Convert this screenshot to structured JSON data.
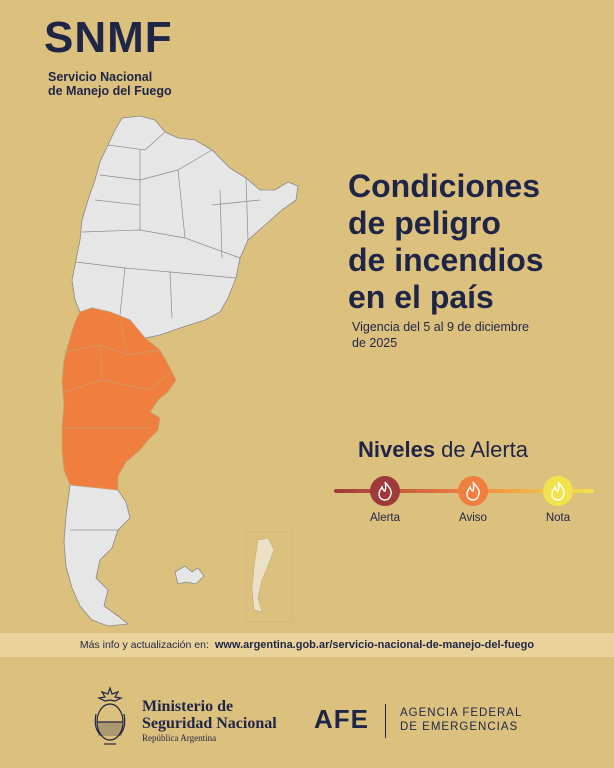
{
  "brand": {
    "acronym": "SNMF",
    "full_name_line1": "Servicio Nacional",
    "full_name_line2": "de Manejo del Fuego"
  },
  "headline": {
    "line1": "Condiciones",
    "line2": "de peligro",
    "line3": "de incendios",
    "line4": "en el país"
  },
  "validity": {
    "line1": "Vigencia del 5 al 9 de diciembre",
    "line2": "de 2025"
  },
  "legend": {
    "title_bold": "Niveles",
    "title_rest": " de Alerta",
    "levels": [
      {
        "label": "Alerta",
        "color": "#9e3a3a",
        "icon": "flame-icon"
      },
      {
        "label": "Aviso",
        "color": "#f07f3f",
        "icon": "flame-icon"
      },
      {
        "label": "Nota",
        "color": "#f2e34d",
        "icon": "flame-icon"
      }
    ]
  },
  "map": {
    "base_color": "#e6e6e6",
    "affected_color": "#f07f3f",
    "affected_level": "Aviso"
  },
  "info": {
    "prefix": "Más info y actualización en:",
    "url": "www.argentina.gob.ar/servicio-nacional-de-manejo-del-fuego"
  },
  "footer": {
    "ministry_line1": "Ministerio de",
    "ministry_line2": "Seguridad Nacional",
    "ministry_line3": "República Argentina",
    "afe_acronym": "AFE",
    "afe_line1": "AGENCIA FEDERAL",
    "afe_line2": "DE EMERGENCIAS"
  }
}
